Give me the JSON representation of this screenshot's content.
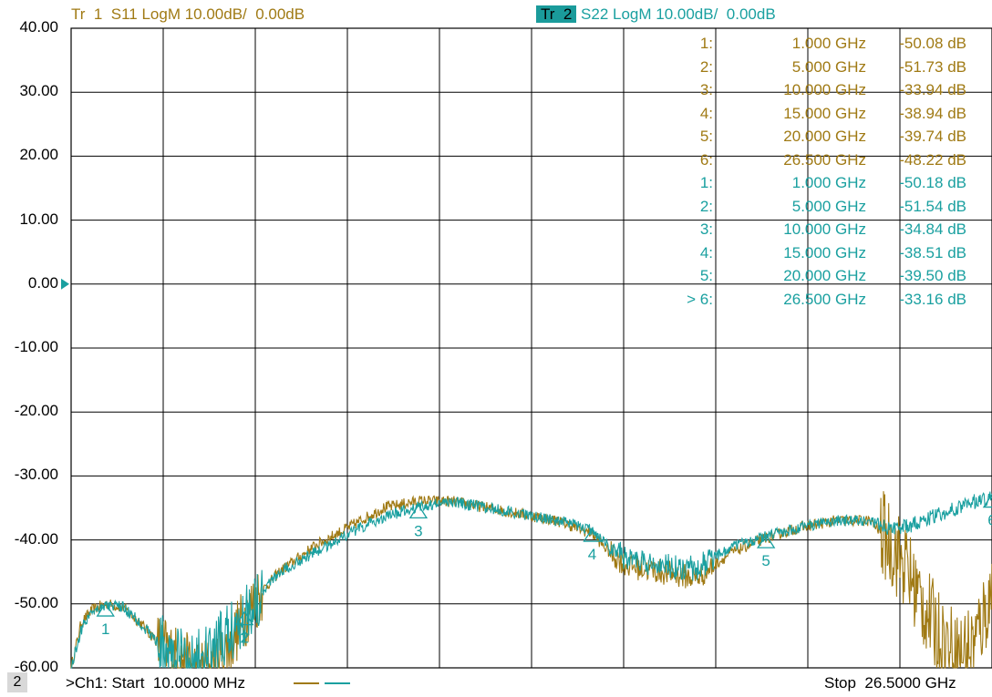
{
  "header": {
    "trace1": "Tr  1  S11 LogM 10.00dB/  0.00dB",
    "trace2_tag": "Tr  2",
    "trace2": " S22 LogM 10.00dB/  0.00dB"
  },
  "footer": {
    "channel_number": "2",
    "start": ">Ch1: Start  10.0000 MHz",
    "stop": "Stop  26.5000 GHz"
  },
  "colors": {
    "trace1": "#a07a14",
    "trace2": "#1aa0a0",
    "grid": "#000000"
  },
  "markers": [
    {
      "num": "1:",
      "freq": "1.000 GHz",
      "value": "-50.08 dB",
      "trace": 1
    },
    {
      "num": "2:",
      "freq": "5.000 GHz",
      "value": "-51.73 dB",
      "trace": 1
    },
    {
      "num": "3:",
      "freq": "10.000 GHz",
      "value": "-33.94 dB",
      "trace": 1
    },
    {
      "num": "4:",
      "freq": "15.000 GHz",
      "value": "-38.94 dB",
      "trace": 1
    },
    {
      "num": "5:",
      "freq": "20.000 GHz",
      "value": "-39.74 dB",
      "trace": 1
    },
    {
      "num": "6:",
      "freq": "26.500 GHz",
      "value": "-48.22 dB",
      "trace": 1
    },
    {
      "num": "1:",
      "freq": "1.000 GHz",
      "value": "-50.18 dB",
      "trace": 2
    },
    {
      "num": "2:",
      "freq": "5.000 GHz",
      "value": "-51.54 dB",
      "trace": 2
    },
    {
      "num": "3:",
      "freq": "10.000 GHz",
      "value": "-34.84 dB",
      "trace": 2
    },
    {
      "num": "4:",
      "freq": "15.000 GHz",
      "value": "-38.51 dB",
      "trace": 2
    },
    {
      "num": "5:",
      "freq": "20.000 GHz",
      "value": "-39.50 dB",
      "trace": 2
    },
    {
      "num": "> 6:",
      "freq": "26.500 GHz",
      "value": "-33.16 dB",
      "trace": 2
    }
  ],
  "chart_data": {
    "type": "line",
    "title": "",
    "xlabel": "",
    "ylabel": "",
    "xlim": [
      0.01,
      26.5
    ],
    "ylim": [
      -60,
      40
    ],
    "grid": true,
    "yticks": [
      "40.00",
      "30.00",
      "20.00",
      "10.00",
      "0.00",
      "-10.00",
      "-20.00",
      "-30.00",
      "-40.00",
      "-50.00",
      "-60.00"
    ],
    "reference_level": 0,
    "series": [
      {
        "name": "S11",
        "x": [
          0.01,
          0.3,
          0.6,
          1.0,
          1.5,
          2.0,
          2.5,
          3.0,
          3.5,
          4.0,
          4.5,
          5.0,
          5.5,
          6.0,
          7.0,
          8.0,
          9.0,
          10.0,
          11.0,
          12.0,
          13.0,
          14.0,
          15.0,
          15.5,
          16.0,
          17.0,
          18.0,
          19.0,
          20.0,
          21.0,
          22.0,
          23.0,
          23.5,
          24.0,
          24.5,
          25.0,
          25.5,
          26.0,
          26.5
        ],
        "y": [
          -60,
          -53,
          -51,
          -50,
          -50.5,
          -53,
          -56,
          -58,
          -60,
          -60,
          -57,
          -52,
          -48,
          -45,
          -41,
          -38,
          -35,
          -33.9,
          -34,
          -35,
          -36,
          -37,
          -39,
          -42,
          -44,
          -45,
          -46,
          -42,
          -39.7,
          -38,
          -37,
          -37,
          -40,
          -44,
          -50,
          -55,
          -58,
          -56,
          -48.2
        ]
      },
      {
        "name": "S22",
        "x": [
          0.01,
          0.3,
          0.6,
          1.0,
          1.5,
          2.0,
          2.5,
          3.0,
          3.5,
          4.0,
          4.5,
          5.0,
          5.5,
          6.0,
          7.0,
          8.0,
          9.0,
          10.0,
          11.0,
          12.0,
          13.0,
          14.0,
          15.0,
          15.5,
          16.0,
          17.0,
          18.0,
          19.0,
          20.0,
          21.0,
          22.0,
          23.0,
          23.5,
          24.0,
          24.5,
          25.0,
          25.5,
          26.0,
          26.5
        ],
        "y": [
          -60,
          -54,
          -51,
          -50.2,
          -50.5,
          -53,
          -56,
          -58,
          -59,
          -58,
          -55,
          -51.5,
          -48,
          -45,
          -42,
          -39,
          -36.5,
          -34.8,
          -34,
          -35,
          -36,
          -37,
          -38.5,
          -41,
          -43,
          -44,
          -44.5,
          -41,
          -39.5,
          -38,
          -37,
          -37,
          -38,
          -38,
          -37,
          -36,
          -35,
          -34,
          -33.2
        ]
      }
    ]
  }
}
